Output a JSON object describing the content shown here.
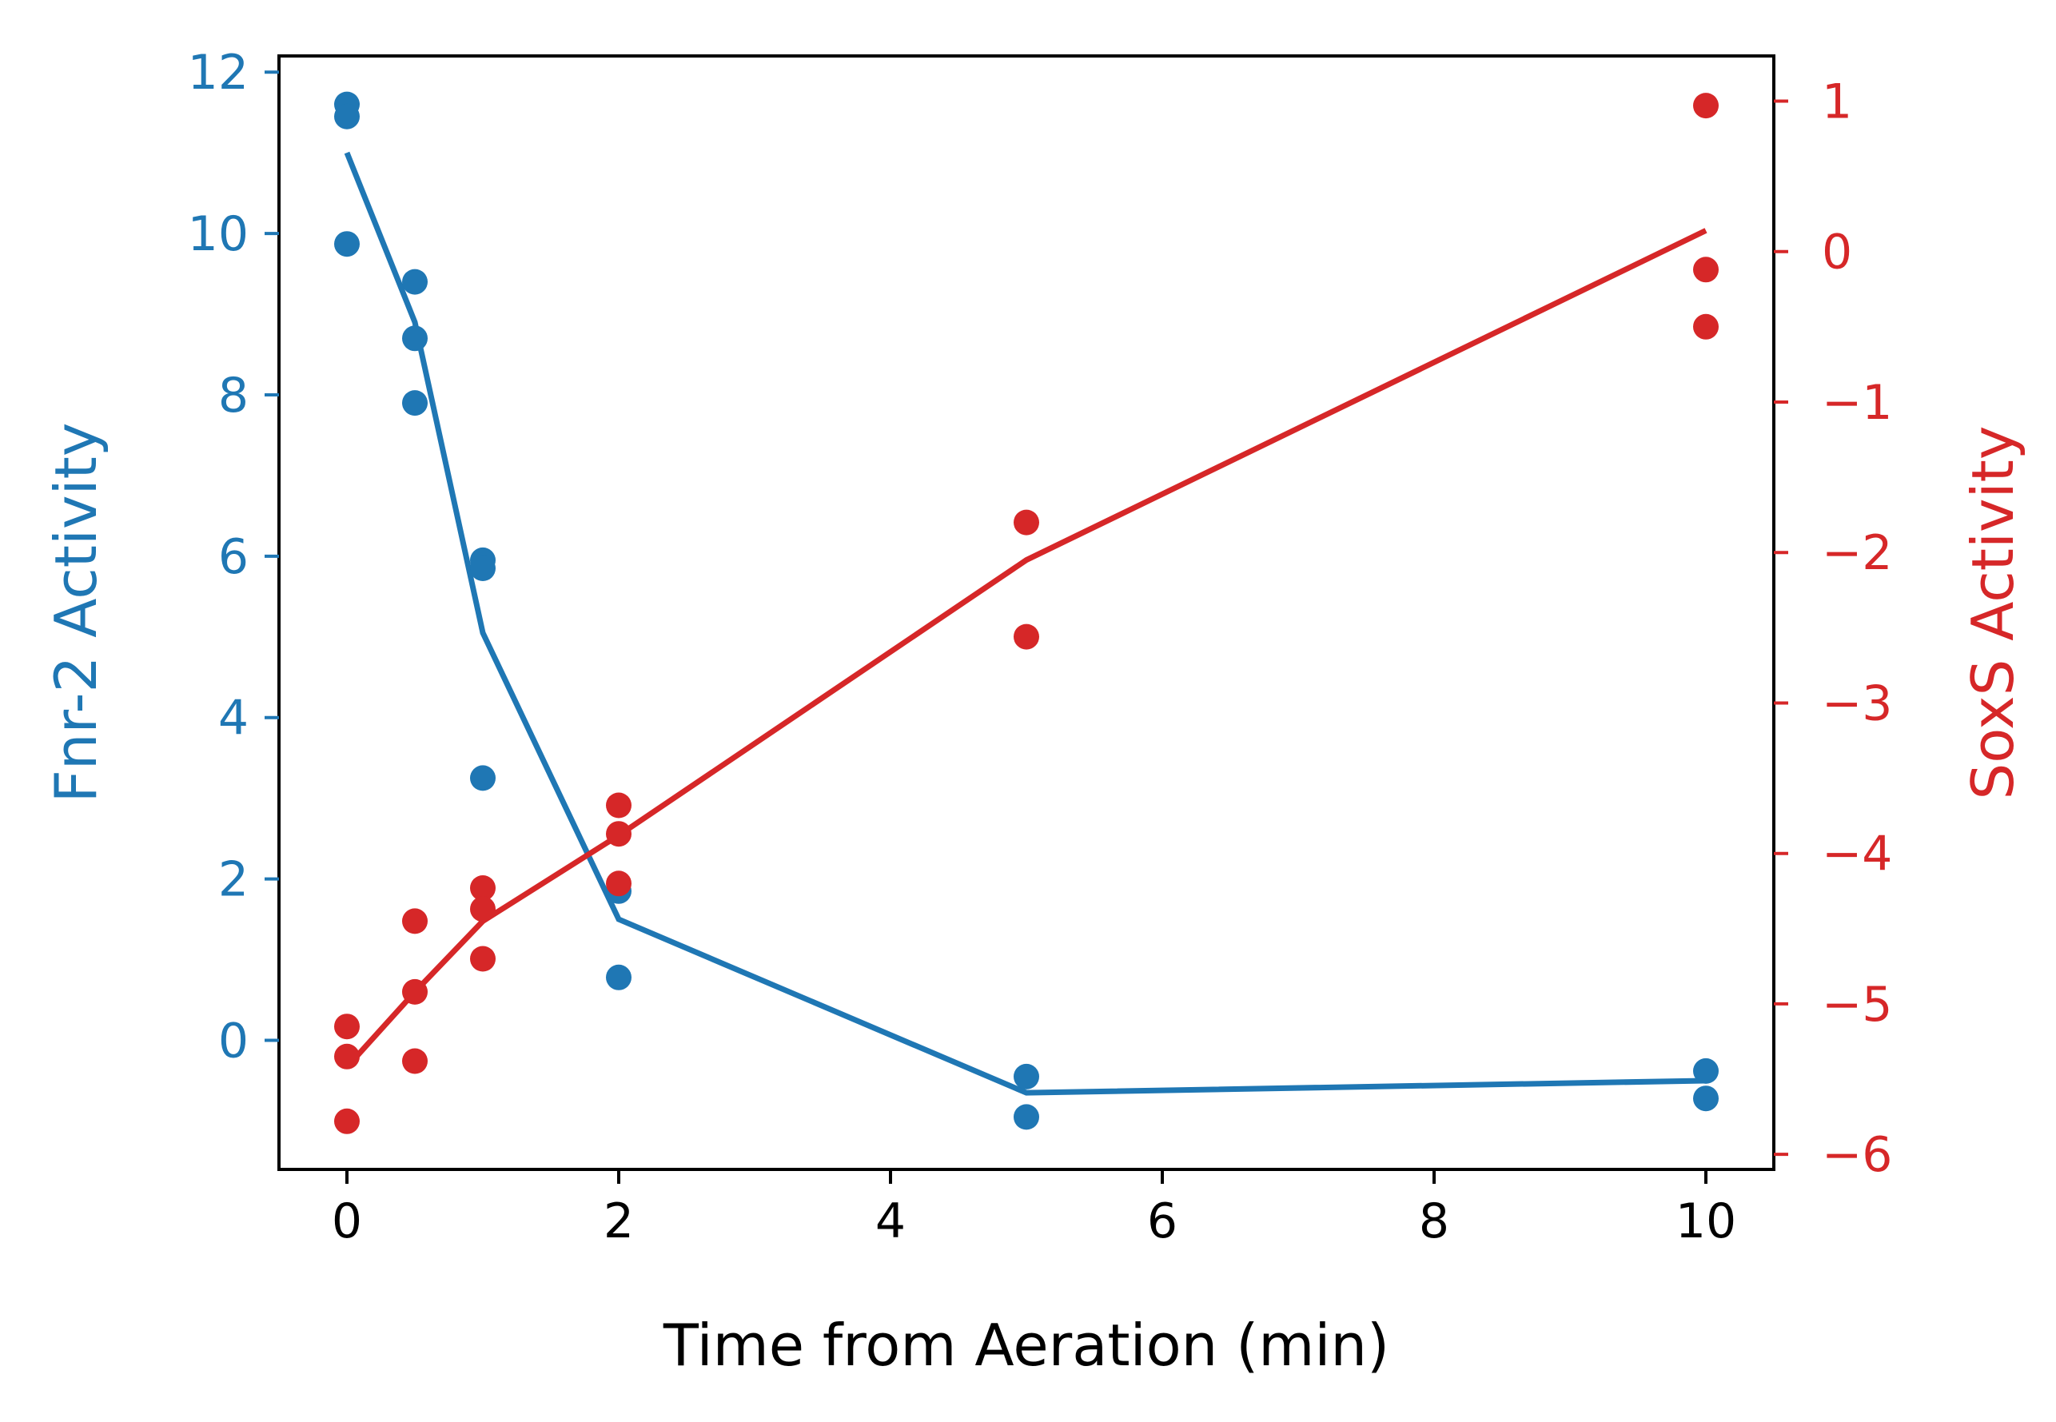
{
  "chart_data": {
    "type": "scatter",
    "xlabel": "Time from Aeration (min)",
    "ylabel": "Fnr-2 Activity",
    "y2label": "SoxS Activity",
    "xlim": [
      -0.5,
      10.5
    ],
    "ylim": [
      -1.6,
      12.2
    ],
    "y2lim": [
      -6.1,
      1.3
    ],
    "xticks": [
      0,
      2,
      4,
      6,
      8,
      10
    ],
    "xtick_labels": [
      "0",
      "2",
      "4",
      "6",
      "8",
      "10"
    ],
    "yticks": [
      0,
      2,
      4,
      6,
      8,
      10,
      12
    ],
    "ytick_labels": [
      "0",
      "2",
      "4",
      "6",
      "8",
      "10",
      "12"
    ],
    "y2ticks": [
      -6,
      -5,
      -4,
      -3,
      -2,
      -1,
      0,
      1
    ],
    "y2tick_labels": [
      "−6",
      "−5",
      "−4",
      "−3",
      "−2",
      "−1",
      "0",
      "1"
    ],
    "grid": false,
    "colors": {
      "fnr2": "#1f77b4",
      "soxs": "#d62728",
      "axis": "#000000"
    },
    "series": [
      {
        "axis": "left",
        "color": "#1f77b4",
        "points": [
          {
            "x": 0,
            "y": 11.6
          },
          {
            "x": 0,
            "y": 11.45
          },
          {
            "x": 0,
            "y": 9.87
          },
          {
            "x": 0.5,
            "y": 9.4
          },
          {
            "x": 0.5,
            "y": 8.7
          },
          {
            "x": 0.5,
            "y": 7.9
          },
          {
            "x": 1,
            "y": 5.95
          },
          {
            "x": 1,
            "y": 5.85
          },
          {
            "x": 1,
            "y": 3.25
          },
          {
            "x": 2,
            "y": 1.85
          },
          {
            "x": 2,
            "y": 0.78
          },
          {
            "x": 5,
            "y": -0.45
          },
          {
            "x": 5,
            "y": -0.95
          },
          {
            "x": 10,
            "y": -0.38
          },
          {
            "x": 10,
            "y": -0.72
          }
        ],
        "fit": [
          {
            "x": 0,
            "y": 11.0
          },
          {
            "x": 0.5,
            "y": 8.9
          },
          {
            "x": 1,
            "y": 5.05
          },
          {
            "x": 2,
            "y": 1.5
          },
          {
            "x": 5,
            "y": -0.65
          },
          {
            "x": 10,
            "y": -0.5
          }
        ]
      },
      {
        "axis": "right",
        "color": "#d62728",
        "points": [
          {
            "x": 0,
            "y": -5.15
          },
          {
            "x": 0,
            "y": -5.35
          },
          {
            "x": 0,
            "y": -5.78
          },
          {
            "x": 0.5,
            "y": -4.45
          },
          {
            "x": 0.5,
            "y": -4.92
          },
          {
            "x": 0.5,
            "y": -5.38
          },
          {
            "x": 1,
            "y": -4.23
          },
          {
            "x": 1,
            "y": -4.37
          },
          {
            "x": 1,
            "y": -4.7
          },
          {
            "x": 2,
            "y": -3.68
          },
          {
            "x": 2,
            "y": -3.87
          },
          {
            "x": 2,
            "y": -4.2
          },
          {
            "x": 5,
            "y": -1.8
          },
          {
            "x": 5,
            "y": -2.56
          },
          {
            "x": 10,
            "y": 0.97
          },
          {
            "x": 10,
            "y": -0.12
          },
          {
            "x": 10,
            "y": -0.5
          }
        ],
        "fit": [
          {
            "x": 0,
            "y": -5.42
          },
          {
            "x": 0.5,
            "y": -4.92
          },
          {
            "x": 1,
            "y": -4.45
          },
          {
            "x": 2,
            "y": -3.88
          },
          {
            "x": 5,
            "y": -2.05
          },
          {
            "x": 10,
            "y": 0.14
          }
        ]
      }
    ]
  }
}
